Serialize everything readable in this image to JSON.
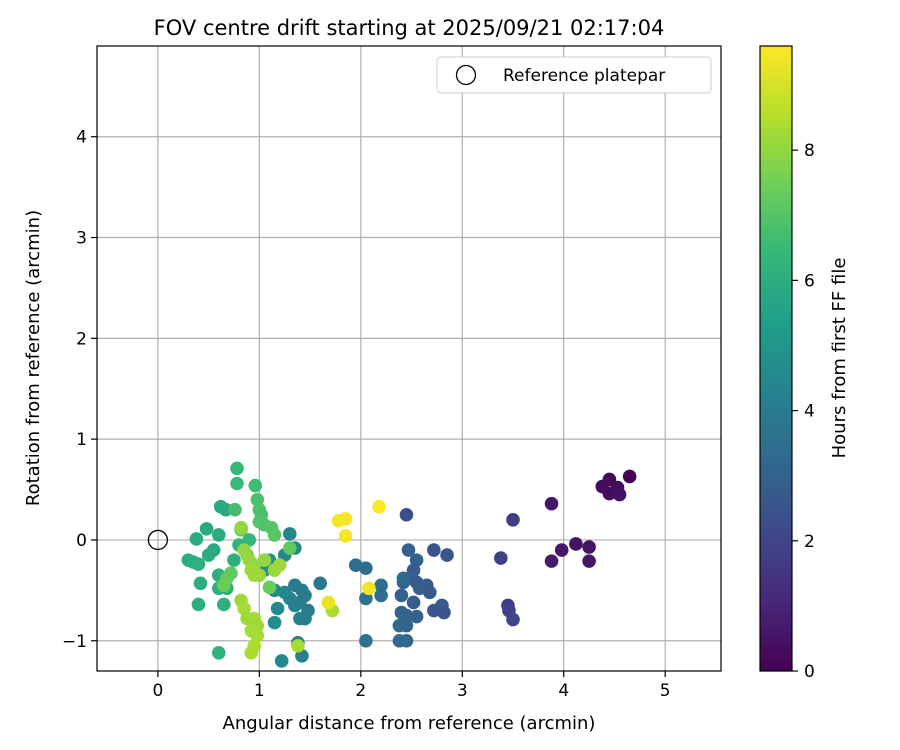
{
  "chart_data": {
    "type": "scatter",
    "title": "FOV centre drift starting at 2025/09/21 02:17:04",
    "xlabel": "Angular distance from reference (arcmin)",
    "ylabel": "Rotation from reference (arcmin)",
    "xlim": [
      -0.6,
      5.55
    ],
    "ylim": [
      -1.3,
      4.9
    ],
    "xticks": [
      0,
      1,
      2,
      3,
      4,
      5
    ],
    "yticks": [
      -1,
      0,
      1,
      2,
      3,
      4
    ],
    "grid": true,
    "legend": {
      "position": "top-right",
      "label": "Reference platepar"
    },
    "reference_point": {
      "x": 0,
      "y": 0
    },
    "colorbar": {
      "label": "Hours from first FF file",
      "min": 0,
      "max": 9.6,
      "ticks": [
        0,
        2,
        4,
        6,
        8
      ],
      "colormap": [
        "#440154",
        "#482878",
        "#3e4989",
        "#31688e",
        "#26828e",
        "#1f9e89",
        "#35b779",
        "#6ece58",
        "#b5de2b",
        "#fde725"
      ]
    },
    "points": [
      {
        "x": 4.65,
        "y": 0.63,
        "h": 0.1
      },
      {
        "x": 4.45,
        "y": 0.6,
        "h": 0.2
      },
      {
        "x": 4.38,
        "y": 0.53,
        "h": 0.3
      },
      {
        "x": 4.53,
        "y": 0.52,
        "h": 0.2
      },
      {
        "x": 4.45,
        "y": 0.46,
        "h": 0.3
      },
      {
        "x": 4.55,
        "y": 0.45,
        "h": 0.4
      },
      {
        "x": 3.88,
        "y": 0.36,
        "h": 0.6
      },
      {
        "x": 4.12,
        "y": -0.04,
        "h": 0.5
      },
      {
        "x": 3.98,
        "y": -0.1,
        "h": 0.6
      },
      {
        "x": 4.25,
        "y": -0.07,
        "h": 0.5
      },
      {
        "x": 3.88,
        "y": -0.21,
        "h": 0.7
      },
      {
        "x": 4.25,
        "y": -0.21,
        "h": 0.6
      },
      {
        "x": 3.5,
        "y": 0.2,
        "h": 1.8
      },
      {
        "x": 3.38,
        "y": -0.18,
        "h": 1.9
      },
      {
        "x": 3.45,
        "y": -0.65,
        "h": 1.8
      },
      {
        "x": 3.46,
        "y": -0.7,
        "h": 1.9
      },
      {
        "x": 3.5,
        "y": -0.79,
        "h": 2.0
      },
      {
        "x": 2.45,
        "y": 0.25,
        "h": 2.3
      },
      {
        "x": 2.47,
        "y": -0.1,
        "h": 2.9
      },
      {
        "x": 2.55,
        "y": -0.2,
        "h": 3.0
      },
      {
        "x": 2.72,
        "y": -0.1,
        "h": 2.5
      },
      {
        "x": 2.85,
        "y": -0.15,
        "h": 2.6
      },
      {
        "x": 2.52,
        "y": -0.3,
        "h": 2.8
      },
      {
        "x": 2.48,
        "y": -0.38,
        "h": 2.9
      },
      {
        "x": 2.42,
        "y": -0.42,
        "h": 3.0
      },
      {
        "x": 2.55,
        "y": -0.42,
        "h": 2.7
      },
      {
        "x": 2.65,
        "y": -0.45,
        "h": 2.8
      },
      {
        "x": 2.58,
        "y": -0.48,
        "h": 2.9
      },
      {
        "x": 2.68,
        "y": -0.52,
        "h": 2.7
      },
      {
        "x": 2.4,
        "y": -0.55,
        "h": 3.0
      },
      {
        "x": 2.52,
        "y": -0.62,
        "h": 2.8
      },
      {
        "x": 2.8,
        "y": -0.65,
        "h": 2.7
      },
      {
        "x": 2.72,
        "y": -0.7,
        "h": 2.6
      },
      {
        "x": 2.82,
        "y": -0.72,
        "h": 2.5
      },
      {
        "x": 2.4,
        "y": -0.72,
        "h": 3.0
      },
      {
        "x": 2.45,
        "y": -0.75,
        "h": 3.1
      },
      {
        "x": 2.55,
        "y": -0.76,
        "h": 3.0
      },
      {
        "x": 2.38,
        "y": -0.85,
        "h": 3.2
      },
      {
        "x": 2.45,
        "y": -0.85,
        "h": 3.1
      },
      {
        "x": 2.38,
        "y": -1.0,
        "h": 3.3
      },
      {
        "x": 2.45,
        "y": -1.0,
        "h": 3.2
      },
      {
        "x": 1.95,
        "y": -0.25,
        "h": 3.5
      },
      {
        "x": 2.05,
        "y": -0.28,
        "h": 3.4
      },
      {
        "x": 2.2,
        "y": -0.45,
        "h": 3.5
      },
      {
        "x": 2.05,
        "y": -0.58,
        "h": 3.6
      },
      {
        "x": 2.2,
        "y": -0.55,
        "h": 3.5
      },
      {
        "x": 2.05,
        "y": -1.0,
        "h": 3.7
      },
      {
        "x": 2.42,
        "y": -0.38,
        "h": 3.3
      },
      {
        "x": 1.6,
        "y": -0.43,
        "h": 3.8
      },
      {
        "x": 1.3,
        "y": 0.06,
        "h": 4.4
      },
      {
        "x": 1.25,
        "y": -0.15,
        "h": 4.5
      },
      {
        "x": 1.35,
        "y": -0.45,
        "h": 4.0
      },
      {
        "x": 1.42,
        "y": -0.5,
        "h": 3.9
      },
      {
        "x": 1.45,
        "y": -0.55,
        "h": 4.0
      },
      {
        "x": 1.4,
        "y": -0.62,
        "h": 4.1
      },
      {
        "x": 1.35,
        "y": -0.65,
        "h": 4.2
      },
      {
        "x": 1.48,
        "y": -0.7,
        "h": 4.0
      },
      {
        "x": 1.45,
        "y": -0.78,
        "h": 4.1
      },
      {
        "x": 1.4,
        "y": -0.78,
        "h": 4.2
      },
      {
        "x": 1.3,
        "y": -0.58,
        "h": 4.3
      },
      {
        "x": 1.25,
        "y": -0.52,
        "h": 4.4
      },
      {
        "x": 1.15,
        "y": -0.5,
        "h": 4.6
      },
      {
        "x": 1.18,
        "y": -0.68,
        "h": 4.5
      },
      {
        "x": 1.15,
        "y": -0.82,
        "h": 4.7
      },
      {
        "x": 1.38,
        "y": -1.02,
        "h": 4.0
      },
      {
        "x": 1.42,
        "y": -1.15,
        "h": 4.1
      },
      {
        "x": 1.22,
        "y": -1.2,
        "h": 4.4
      },
      {
        "x": 1.05,
        "y": -0.3,
        "h": 4.8
      },
      {
        "x": 1.1,
        "y": -0.2,
        "h": 4.8
      },
      {
        "x": 1.35,
        "y": -0.08,
        "h": 4.5
      },
      {
        "x": 0.62,
        "y": 0.33,
        "h": 5.7
      },
      {
        "x": 0.67,
        "y": 0.3,
        "h": 5.8
      },
      {
        "x": 0.6,
        "y": 0.05,
        "h": 5.9
      },
      {
        "x": 0.48,
        "y": 0.11,
        "h": 5.8
      },
      {
        "x": 0.38,
        "y": 0.01,
        "h": 5.9
      },
      {
        "x": 0.55,
        "y": -0.1,
        "h": 5.8
      },
      {
        "x": 0.5,
        "y": -0.15,
        "h": 5.9
      },
      {
        "x": 0.3,
        "y": -0.2,
        "h": 6.0
      },
      {
        "x": 0.35,
        "y": -0.22,
        "h": 6.0
      },
      {
        "x": 0.4,
        "y": -0.24,
        "h": 6.1
      },
      {
        "x": 0.6,
        "y": -0.35,
        "h": 6.0
      },
      {
        "x": 0.65,
        "y": -0.38,
        "h": 6.1
      },
      {
        "x": 0.6,
        "y": -0.48,
        "h": 6.1
      },
      {
        "x": 0.68,
        "y": -0.48,
        "h": 6.2
      },
      {
        "x": 0.42,
        "y": -0.43,
        "h": 6.0
      },
      {
        "x": 0.4,
        "y": -0.64,
        "h": 6.0
      },
      {
        "x": 0.65,
        "y": -0.64,
        "h": 6.1
      },
      {
        "x": 0.6,
        "y": -1.12,
        "h": 6.2
      },
      {
        "x": 0.75,
        "y": -0.2,
        "h": 6.1
      },
      {
        "x": 0.8,
        "y": -0.05,
        "h": 6.2
      },
      {
        "x": 0.9,
        "y": 0.0,
        "h": 6.3
      },
      {
        "x": 0.78,
        "y": 0.71,
        "h": 6.4
      },
      {
        "x": 0.78,
        "y": 0.56,
        "h": 6.5
      },
      {
        "x": 0.96,
        "y": 0.54,
        "h": 6.6
      },
      {
        "x": 0.98,
        "y": 0.4,
        "h": 6.8
      },
      {
        "x": 0.76,
        "y": 0.3,
        "h": 6.7
      },
      {
        "x": 1.0,
        "y": 0.3,
        "h": 6.9
      },
      {
        "x": 1.02,
        "y": 0.25,
        "h": 6.8
      },
      {
        "x": 1.0,
        "y": 0.18,
        "h": 7.0
      },
      {
        "x": 1.05,
        "y": 0.15,
        "h": 6.9
      },
      {
        "x": 1.12,
        "y": 0.12,
        "h": 7.0
      },
      {
        "x": 1.15,
        "y": 0.05,
        "h": 7.1
      },
      {
        "x": 1.3,
        "y": -0.08,
        "h": 7.2
      },
      {
        "x": 0.82,
        "y": 0.1,
        "h": 7.3
      },
      {
        "x": 0.72,
        "y": -0.33,
        "h": 7.2
      },
      {
        "x": 0.68,
        "y": -0.38,
        "h": 7.3
      },
      {
        "x": 0.65,
        "y": -0.45,
        "h": 7.4
      },
      {
        "x": 0.88,
        "y": -0.15,
        "h": 7.5
      },
      {
        "x": 1.1,
        "y": -0.47,
        "h": 7.4
      },
      {
        "x": 0.85,
        "y": -0.1,
        "h": 8.0
      },
      {
        "x": 0.9,
        "y": -0.2,
        "h": 8.1
      },
      {
        "x": 0.95,
        "y": -0.25,
        "h": 8.0
      },
      {
        "x": 0.92,
        "y": -0.3,
        "h": 8.2
      },
      {
        "x": 1.0,
        "y": -0.35,
        "h": 8.1
      },
      {
        "x": 0.95,
        "y": -0.35,
        "h": 8.2
      },
      {
        "x": 1.05,
        "y": -0.2,
        "h": 8.0
      },
      {
        "x": 1.15,
        "y": -0.3,
        "h": 8.1
      },
      {
        "x": 1.2,
        "y": -0.25,
        "h": 8.2
      },
      {
        "x": 0.82,
        "y": -0.6,
        "h": 8.2
      },
      {
        "x": 0.85,
        "y": -0.68,
        "h": 8.3
      },
      {
        "x": 0.88,
        "y": -0.78,
        "h": 8.2
      },
      {
        "x": 0.95,
        "y": -0.78,
        "h": 8.3
      },
      {
        "x": 0.98,
        "y": -0.85,
        "h": 8.2
      },
      {
        "x": 0.92,
        "y": -0.9,
        "h": 8.3
      },
      {
        "x": 0.98,
        "y": -0.95,
        "h": 8.3
      },
      {
        "x": 0.95,
        "y": -1.05,
        "h": 8.4
      },
      {
        "x": 0.92,
        "y": -1.12,
        "h": 8.4
      },
      {
        "x": 1.38,
        "y": -1.05,
        "h": 8.3
      },
      {
        "x": 1.72,
        "y": -0.7,
        "h": 8.4
      },
      {
        "x": 0.82,
        "y": 0.12,
        "h": 8.0
      },
      {
        "x": 1.68,
        "y": -0.62,
        "h": 9.3
      },
      {
        "x": 2.08,
        "y": -0.48,
        "h": 9.4
      },
      {
        "x": 1.85,
        "y": 0.04,
        "h": 9.5
      },
      {
        "x": 1.78,
        "y": 0.19,
        "h": 9.4
      },
      {
        "x": 1.85,
        "y": 0.21,
        "h": 9.5
      },
      {
        "x": 2.18,
        "y": 0.33,
        "h": 9.6
      }
    ]
  }
}
